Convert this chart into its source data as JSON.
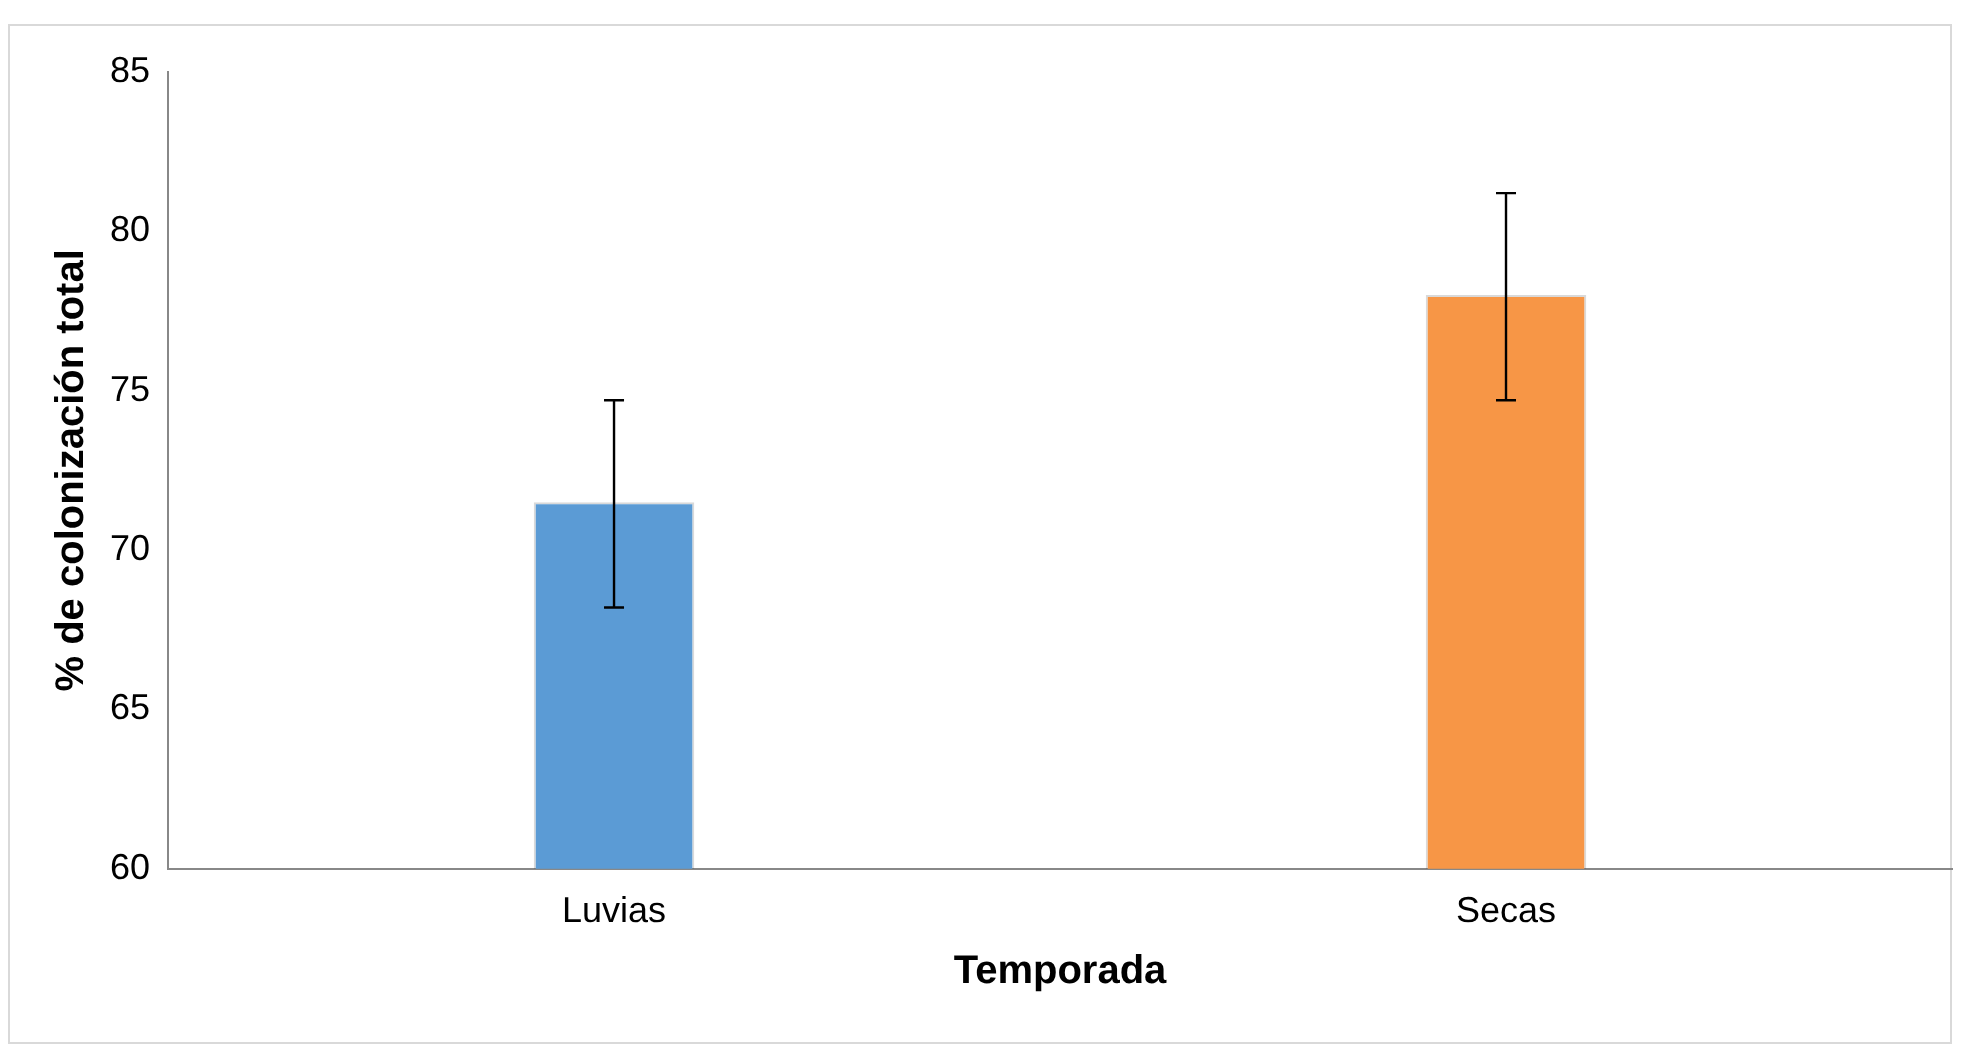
{
  "chart_data": {
    "type": "bar",
    "xlabel": "Temporada",
    "ylabel": "% de colonización total",
    "categories": [
      "Luvias",
      "Secas"
    ],
    "values": [
      71.5,
      78.0
    ],
    "colors": [
      "#5b9bd5",
      "#f79646"
    ],
    "errors": [
      [
        68.2,
        74.7
      ],
      [
        74.7,
        81.2
      ]
    ],
    "ylim": [
      60,
      85
    ],
    "yticks": [
      60,
      65,
      70,
      75,
      80,
      85
    ],
    "grid": false,
    "legend": false
  }
}
